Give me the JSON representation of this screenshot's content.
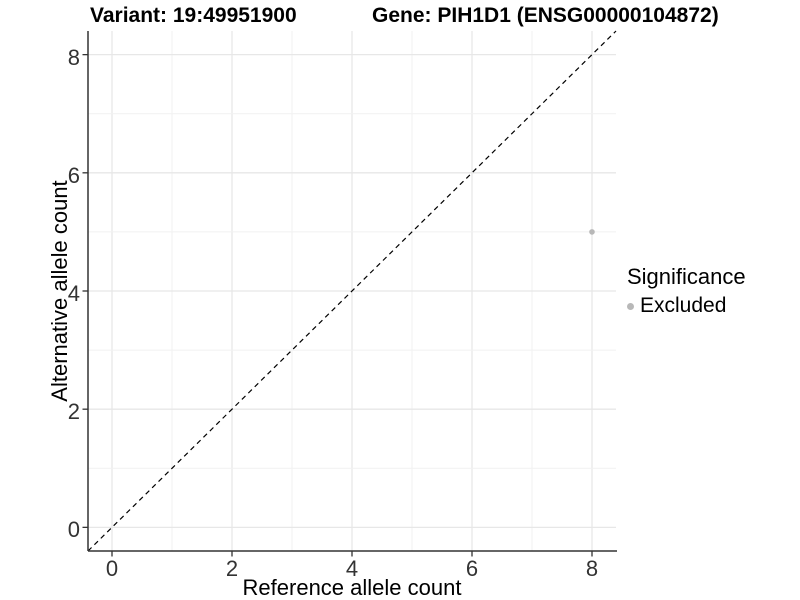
{
  "chart_data": {
    "type": "scatter",
    "title_variant": "Variant: 19:49951900",
    "title_gene": "Gene: PIH1D1 (ENSG00000104872)",
    "xlabel": "Reference allele count",
    "ylabel": "Alternative allele count",
    "xlim": [
      -0.4,
      8.4
    ],
    "ylim": [
      -0.4,
      8.4
    ],
    "xticks": [
      0,
      2,
      4,
      6,
      8
    ],
    "yticks": [
      0,
      2,
      4,
      6,
      8
    ],
    "grid": {
      "on": true,
      "interval": 1,
      "major_color": "#e7e7e7",
      "minor_color": "#f1f1f1"
    },
    "identity_line": {
      "slope": 1,
      "intercept": 0,
      "style": "dashed",
      "color": "#000000"
    },
    "series": [
      {
        "name": "Excluded",
        "color": "#b8b8b8",
        "points": [
          {
            "x": 8,
            "y": 5
          }
        ]
      }
    ],
    "legend": {
      "title": "Significance",
      "position": "right",
      "entries": [
        {
          "label": "Excluded",
          "color": "#b8b8b8",
          "marker": "circle"
        }
      ]
    },
    "axis_color": "#333333"
  }
}
